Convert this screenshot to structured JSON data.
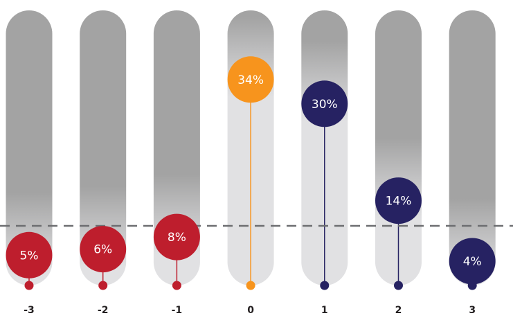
{
  "chart_data": {
    "type": "bar",
    "categories": [
      "-3",
      "-2",
      "-1",
      "0",
      "1",
      "2",
      "3"
    ],
    "values": [
      5,
      6,
      8,
      34,
      30,
      14,
      4
    ],
    "value_labels": [
      "5%",
      "6%",
      "8%",
      "34%",
      "30%",
      "14%",
      "4%"
    ],
    "point_colors": [
      "#be1e2d",
      "#be1e2d",
      "#be1e2d",
      "#f7941d",
      "#262262",
      "#262262",
      "#262262"
    ],
    "ylim": [
      0,
      50
    ],
    "title": "",
    "xlabel": "",
    "ylabel": "",
    "grid": false,
    "legend": "none"
  },
  "colors": {
    "negative": "#be1e2d",
    "neutral": "#f7941d",
    "positive": "#262262",
    "track_dark": "#a3a3a3",
    "track_light": "#e1e1e3",
    "reference_line": "#6d6e71",
    "label_text": "#ffffff",
    "category_text": "#231f20"
  }
}
